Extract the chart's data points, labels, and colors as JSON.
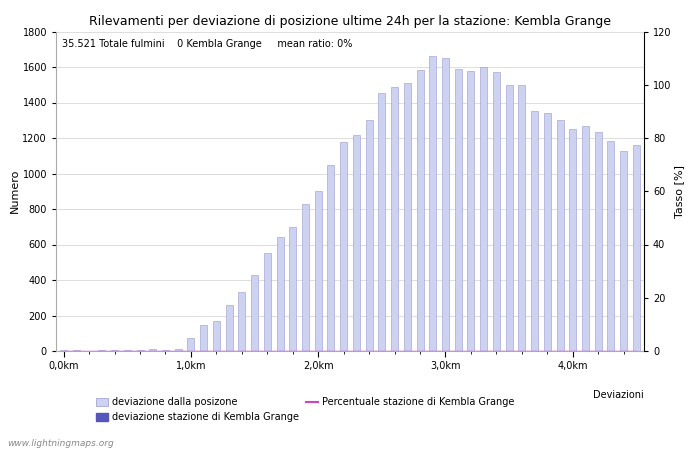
{
  "title": "Rilevamenti per deviazione di posizione ultime 24h per la stazione: Kembla Grange",
  "subtitle": "35.521 Totale fulmini    0 Kembla Grange     mean ratio: 0%",
  "xlabel": "Deviazioni",
  "ylabel_left": "Numero",
  "ylabel_right": "Tasso [%]",
  "xlim_bars": 46,
  "ylim_left": [
    0,
    1800
  ],
  "ylim_right": [
    0,
    120
  ],
  "xtick_labels": [
    "0,0km",
    "1,0km",
    "2,0km",
    "3,0km",
    "4,0km"
  ],
  "xtick_positions": [
    0,
    10,
    20,
    30,
    40
  ],
  "ytick_left": [
    0,
    200,
    400,
    600,
    800,
    1000,
    1200,
    1400,
    1600,
    1800
  ],
  "ytick_right": [
    0,
    20,
    40,
    60,
    80,
    100,
    120
  ],
  "bar_values": [
    5,
    3,
    2,
    4,
    3,
    5,
    8,
    10,
    8,
    12,
    75,
    145,
    170,
    260,
    330,
    430,
    550,
    645,
    700,
    830,
    900,
    1050,
    1175,
    1215,
    1300,
    1455,
    1490,
    1510,
    1585,
    1660,
    1650,
    1590,
    1580,
    1600,
    1570,
    1500,
    1500,
    1350,
    1340,
    1300,
    1250,
    1265,
    1235,
    1185,
    1125,
    1160
  ],
  "bar_color_light": "#ccd2f0",
  "bar_color_dark": "#5555bb",
  "bar_edgecolor": "#9999cc",
  "legend1_label": "deviazione dalla posizone",
  "legend2_label": "deviazione stazione di Kembla Grange",
  "legend3_label": "Percentuale stazione di Kembla Grange",
  "legend3_color": "#cc44cc",
  "watermark": "www.lightningmaps.org",
  "title_fontsize": 9,
  "axis_fontsize": 8,
  "tick_fontsize": 7,
  "subtitle_fontsize": 7
}
